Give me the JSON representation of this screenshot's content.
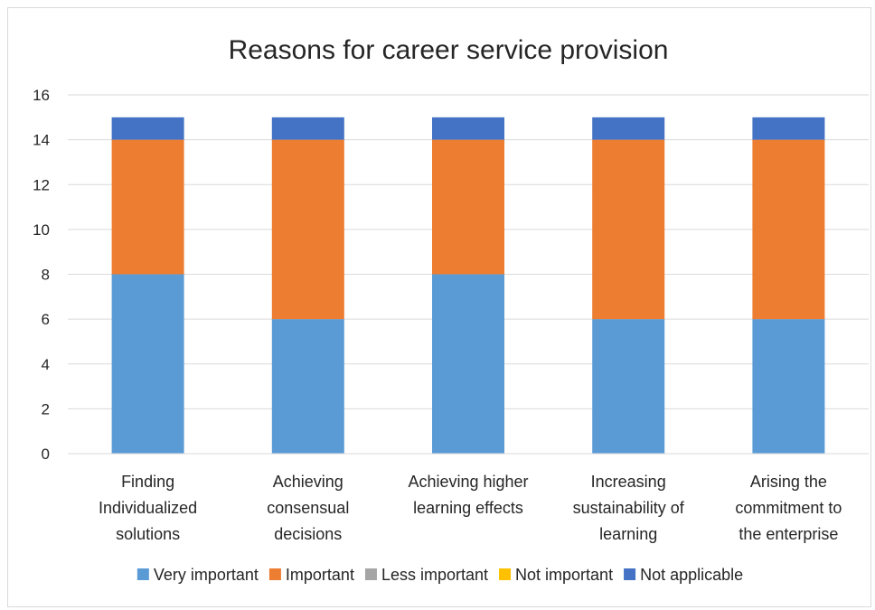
{
  "chart_data": {
    "type": "bar",
    "stacked": true,
    "title": "Reasons for career service provision",
    "xlabel": "",
    "ylabel": "",
    "ylim": [
      0,
      16
    ],
    "yticks": [
      0,
      2,
      4,
      6,
      8,
      10,
      12,
      14,
      16
    ],
    "grid": true,
    "legend_position": "bottom",
    "categories": [
      [
        "Finding",
        "Individualized",
        "solutions"
      ],
      [
        "Achieving",
        "consensual",
        "decisions"
      ],
      [
        "Achieving higher",
        "learning effects"
      ],
      [
        "Increasing",
        "sustainability of",
        "learning"
      ],
      [
        "Arising the",
        "commitment to",
        "the enterprise"
      ]
    ],
    "series": [
      {
        "name": "Very important",
        "color": "#5B9BD5",
        "values": [
          8,
          6,
          8,
          6,
          6
        ]
      },
      {
        "name": "Important",
        "color": "#ED7D31",
        "values": [
          6,
          8,
          6,
          8,
          8
        ]
      },
      {
        "name": "Less important",
        "color": "#A5A5A5",
        "values": [
          0,
          0,
          0,
          0,
          0
        ]
      },
      {
        "name": "Not important",
        "color": "#FFC000",
        "values": [
          0,
          0,
          0,
          0,
          0
        ]
      },
      {
        "name": "Not applicable",
        "color": "#4472C4",
        "values": [
          1,
          1,
          1,
          1,
          1
        ]
      }
    ]
  }
}
